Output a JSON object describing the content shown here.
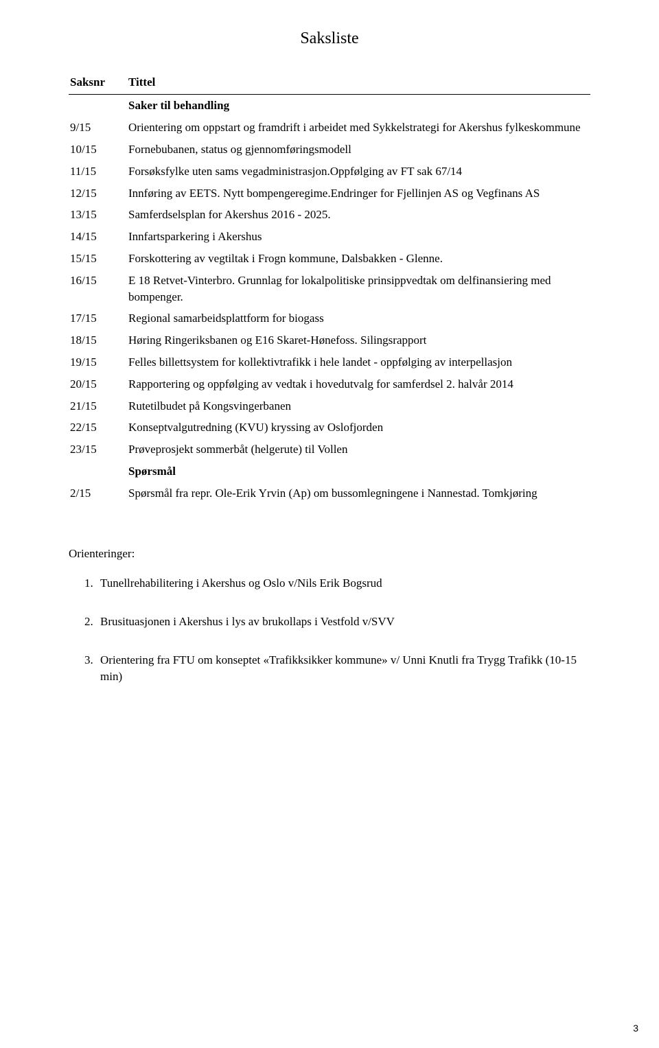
{
  "document": {
    "pageTitle": "Saksliste",
    "columns": {
      "saksnr": "Saksnr",
      "tittel": "Tittel"
    },
    "section1": "Saker til behandling",
    "items": [
      {
        "num": "9/15",
        "title": "Orientering om oppstart og framdrift i arbeidet med Sykkelstrategi for Akershus fylkeskommune"
      },
      {
        "num": "10/15",
        "title": "Fornebubanen, status og gjennomføringsmodell"
      },
      {
        "num": "11/15",
        "title": "Forsøksfylke uten sams vegadministrasjon.Oppfølging av FT sak 67/14"
      },
      {
        "num": "12/15",
        "title": "Innføring av EETS. Nytt bompengeregime.Endringer for Fjellinjen AS og Vegfinans AS"
      },
      {
        "num": "13/15",
        "title": "Samferdselsplan for Akershus 2016 - 2025."
      },
      {
        "num": "14/15",
        "title": "Innfartsparkering i Akershus"
      },
      {
        "num": "15/15",
        "title": "Forskottering av vegtiltak i Frogn kommune, Dalsbakken - Glenne."
      },
      {
        "num": "16/15",
        "title": "E 18 Retvet-Vinterbro. Grunnlag for lokalpolitiske prinsippvedtak om delfinansiering med bompenger."
      },
      {
        "num": "17/15",
        "title": "Regional samarbeidsplattform for biogass"
      },
      {
        "num": "18/15",
        "title": "Høring Ringeriksbanen og E16 Skaret-Hønefoss. Silingsrapport"
      },
      {
        "num": "19/15",
        "title": "Felles billettsystem for kollektivtrafikk i hele landet - oppfølging av interpellasjon"
      },
      {
        "num": "20/15",
        "title": "Rapportering og oppfølging av vedtak i hovedutvalg for samferdsel 2. halvår 2014"
      },
      {
        "num": "21/15",
        "title": "Rutetilbudet på Kongsvingerbanen"
      },
      {
        "num": "22/15",
        "title": "Konseptvalgutredning (KVU) kryssing av Oslofjorden"
      },
      {
        "num": "23/15",
        "title": "Prøveprosjekt sommerbåt (helgerute) til Vollen"
      }
    ],
    "section2": "Spørsmål",
    "questions": [
      {
        "num": "2/15",
        "title": "Spørsmål fra repr. Ole-Erik Yrvin (Ap) om bussomlegningene i Nannestad. Tomkjøring"
      }
    ],
    "orienteringer": {
      "title": "Orienteringer:",
      "list": [
        "Tunellrehabilitering i Akershus og Oslo v/Nils Erik Bogsrud",
        "Brusituasjonen i Akershus i lys av brukollaps i Vestfold v/SVV",
        "Orientering fra FTU om konseptet «Trafikksikker kommune» v/ Unni Knutli fra Trygg Trafikk (10-15 min)"
      ]
    },
    "pageNumber": "3"
  },
  "style": {
    "background_color": "#ffffff",
    "text_color": "#000000",
    "body_fontsize": 17,
    "title_fontsize": 24,
    "font_family": "Times New Roman"
  }
}
